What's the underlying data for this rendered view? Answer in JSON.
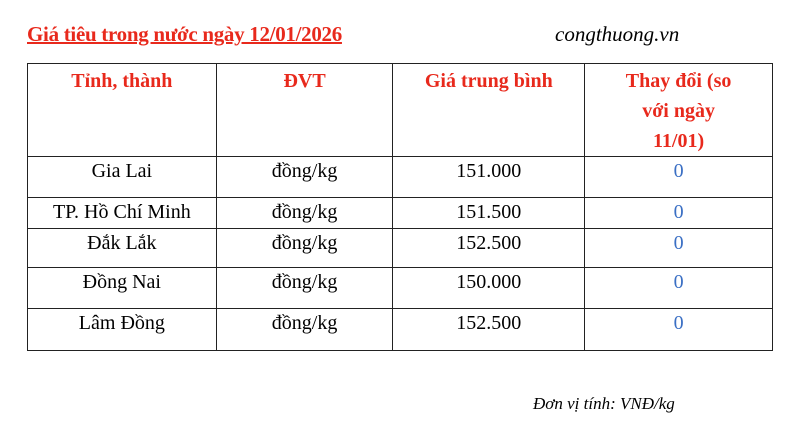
{
  "title": "Giá tiêu trong nước ngày 12/01/2026",
  "source": "congthuong.vn",
  "table": {
    "headers": [
      "Tỉnh, thành",
      "ĐVT",
      "Giá trung bình",
      "Thay đổi (so với ngày 11/01)"
    ],
    "rows": [
      [
        "Gia Lai",
        "đồng/kg",
        "151.000",
        "0"
      ],
      [
        "TP. Hồ Chí Minh",
        "đồng/kg",
        "151.500",
        "0"
      ],
      [
        "Đắk Lắk",
        "đồng/kg",
        "152.500",
        "0"
      ],
      [
        "Đồng Nai",
        "đồng/kg",
        "150.000",
        "0"
      ],
      [
        "Lâm Đồng",
        "đồng/kg",
        "152.500",
        "0"
      ]
    ]
  },
  "footer": "Đơn vị tính: VNĐ/kg",
  "colors": {
    "header_text": "#e8291c",
    "change_text": "#3a6fc4"
  }
}
